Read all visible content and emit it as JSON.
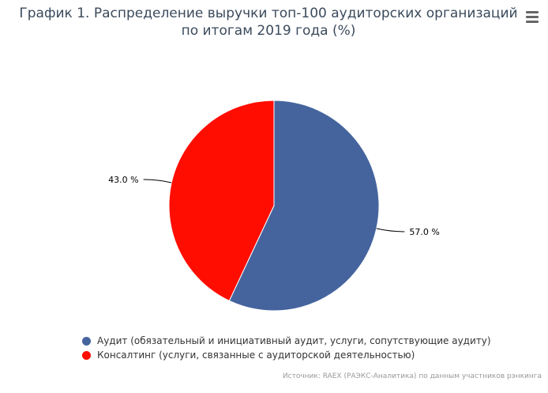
{
  "title": "График 1. Распределение выручки топ-100 аудиторских организаций по итогам 2019 года (%)",
  "menu_icon": "hamburger-menu-icon",
  "chart_data": {
    "type": "pie",
    "title": "График 1. Распределение выручки топ-100 аудиторских организаций по итогам 2019 года (%)",
    "slices": [
      {
        "name": "Аудит (обязательный и инициативный аудит, услуги, сопутствующие аудиту)",
        "value": 57.0,
        "label": "57.0 %",
        "color": "#45649e"
      },
      {
        "name": "Консалтинг (услуги, связанные с аудиторской деятельностью)",
        "value": 43.0,
        "label": "43.0 %",
        "color": "#ff0d00"
      }
    ],
    "legend_position": "bottom-left"
  },
  "credits": "Источник: RAEX (РАЭКС-Аналитика) по данным участников рэнкинга"
}
